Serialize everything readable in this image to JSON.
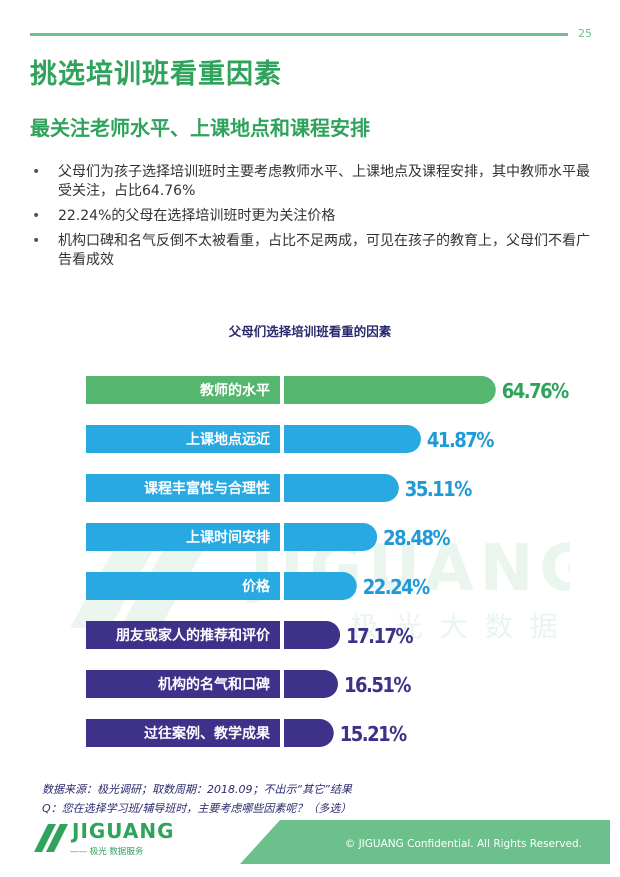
{
  "page_number": "25",
  "title": "挑选培训班看重因素",
  "subtitle": "最关注老师水平、上课地点和课程安排",
  "bullets": [
    "父母们为孩子选择培训班时主要考虑教师水平、上课地点及课程安排，其中教师水平最受关注，占比64.76%",
    "22.24%的父母在选择培训班时更为关注价格",
    "机构口碑和名气反倒不太被看重，占比不足两成，可见在孩子的教育上，父母们不看广告看成效"
  ],
  "chart_data": {
    "type": "bar",
    "orientation": "horizontal",
    "title": "父母们选择培训班看重的因素",
    "categories": [
      "教师的水平",
      "上课地点远近",
      "课程丰富性与合理性",
      "上课时间安排",
      "价格",
      "朋友或家人的推荐和评价",
      "机构的名气和口碑",
      "过往案例、教学成果"
    ],
    "values": [
      64.76,
      41.87,
      35.11,
      28.48,
      22.24,
      17.17,
      16.51,
      15.21
    ],
    "value_labels": [
      "64.76%",
      "41.87%",
      "35.11%",
      "28.48%",
      "22.24%",
      "17.17%",
      "16.51%",
      "15.21%"
    ],
    "bar_colors": [
      "#55b66f",
      "#29a9e2",
      "#29a9e2",
      "#29a9e2",
      "#29a9e2",
      "#3e318a",
      "#3e318a",
      "#3e318a"
    ],
    "value_label_colors": [
      "#2fa35c",
      "#1f9ad6",
      "#1f9ad6",
      "#1f9ad6",
      "#1f9ad6",
      "#3e318a",
      "#3e318a",
      "#3e318a"
    ],
    "unit": "%",
    "legend": "none",
    "grid": false
  },
  "watermark": {
    "word": "JIGUANG",
    "sub": "极 光 大 数 据",
    "color": "#d8eee0"
  },
  "source_note": {
    "line1": "数据来源：极光调研；取数周期：2018.09；不出示“其它”结果",
    "line2": "Q：您在选择学习班/辅导班时，主要考虑哪些因素呢？（多选）"
  },
  "footer": {
    "copyright": "© JIGUANG Confidential. All Rights Reserved.",
    "logo_word": "JIGUANG",
    "logo_sub": "—— 极光 数据服务"
  },
  "colors": {
    "brand_green": "#2fa35c",
    "accent_green": "#6cc08b",
    "navy": "#2b2a6e"
  }
}
